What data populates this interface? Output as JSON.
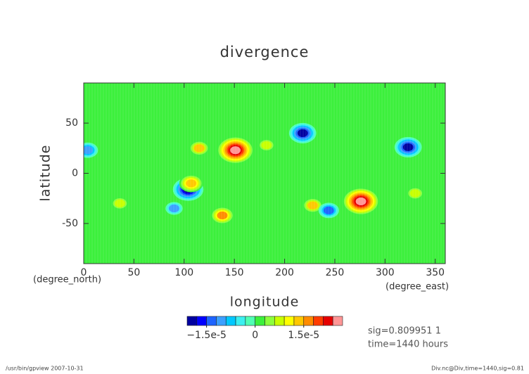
{
  "chart_data": {
    "type": "contour",
    "title": "divergence",
    "xlabel": "longitude",
    "ylabel": "latitude",
    "xunit": "(degree_east)",
    "yunit": "(degree_north)",
    "xlim": [
      0,
      360
    ],
    "ylim": [
      -90,
      90
    ],
    "xticks": [
      0,
      50,
      100,
      150,
      200,
      250,
      300,
      350
    ],
    "yticks": [
      -50,
      0,
      50
    ],
    "features": [
      {
        "lon": 151,
        "lat": 23,
        "value": 2.5e-05
      },
      {
        "lon": 276,
        "lat": -28,
        "value": 2.6e-05
      },
      {
        "lon": 104,
        "lat": -16,
        "value": -2e-05
      },
      {
        "lon": 218,
        "lat": 40,
        "value": -1.8e-05
      },
      {
        "lon": 323,
        "lat": 26,
        "value": -1.8e-05
      },
      {
        "lon": 138,
        "lat": -42,
        "value": 1.5e-05
      },
      {
        "lon": 107,
        "lat": -10,
        "value": 1.3e-05
      },
      {
        "lon": 115,
        "lat": 25,
        "value": 1.2e-05
      },
      {
        "lon": 228,
        "lat": -32,
        "value": 1.2e-05
      },
      {
        "lon": 244,
        "lat": -37,
        "value": -1.2e-05
      },
      {
        "lon": 36,
        "lat": -30,
        "value": 9e-06
      },
      {
        "lon": 4,
        "lat": 23,
        "value": -1e-05
      },
      {
        "lon": 182,
        "lat": 28,
        "value": 8e-06
      },
      {
        "lon": 90,
        "lat": -35,
        "value": -9e-06
      },
      {
        "lon": 330,
        "lat": -20,
        "value": 7e-06
      }
    ],
    "colorbar": {
      "clim": [
        -2.1e-05,
        2.7e-05
      ],
      "colors": [
        "#0000a0",
        "#0000ff",
        "#1e64ff",
        "#3ca0ff",
        "#00c8ff",
        "#3cf0f0",
        "#50ffb4",
        "#3cf03c",
        "#8cff3c",
        "#c8ff00",
        "#ffff00",
        "#ffc800",
        "#ff8c00",
        "#ff3c00",
        "#e60000",
        "#ff9696"
      ],
      "ticks": [
        {
          "value": -1.5e-05,
          "label": "−1.5e-5"
        },
        0,
        {
          "value": 1.5e-05,
          "label": "1.5e-5"
        }
      ]
    },
    "annotations": [
      "sig=0.809951 1",
      "time=1440 hours"
    ],
    "footer_left": "/usr/bin/gpview  2007-10-31",
    "footer_right": "Div.nc@Div,time=1440,sig=0.81"
  }
}
